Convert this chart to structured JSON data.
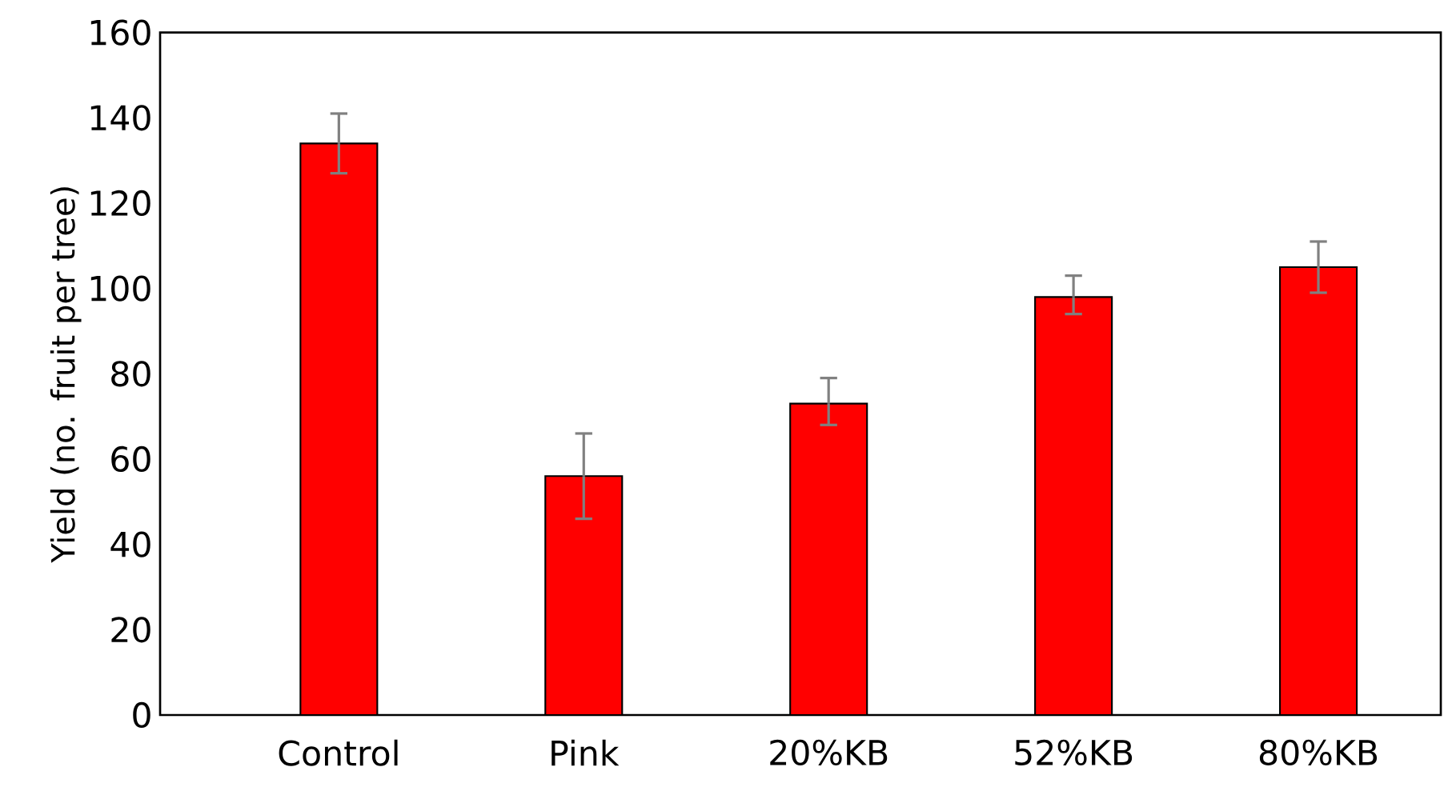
{
  "chart_data": {
    "type": "bar",
    "ylabel": "Yield (no. fruit per tree)",
    "categories": [
      "Control",
      "Pink",
      "20%KB",
      "52%KB",
      "80%KB"
    ],
    "values": [
      134,
      56,
      73,
      98,
      105
    ],
    "errors": [
      [
        127,
        141
      ],
      [
        46,
        66
      ],
      [
        68,
        79
      ],
      [
        94,
        103
      ],
      [
        99,
        111
      ]
    ],
    "color": "#ff0000",
    "ylim": [
      0,
      160
    ],
    "yticks": [
      0,
      20,
      40,
      60,
      80,
      100,
      120,
      140,
      160
    ],
    "grid": false
  }
}
